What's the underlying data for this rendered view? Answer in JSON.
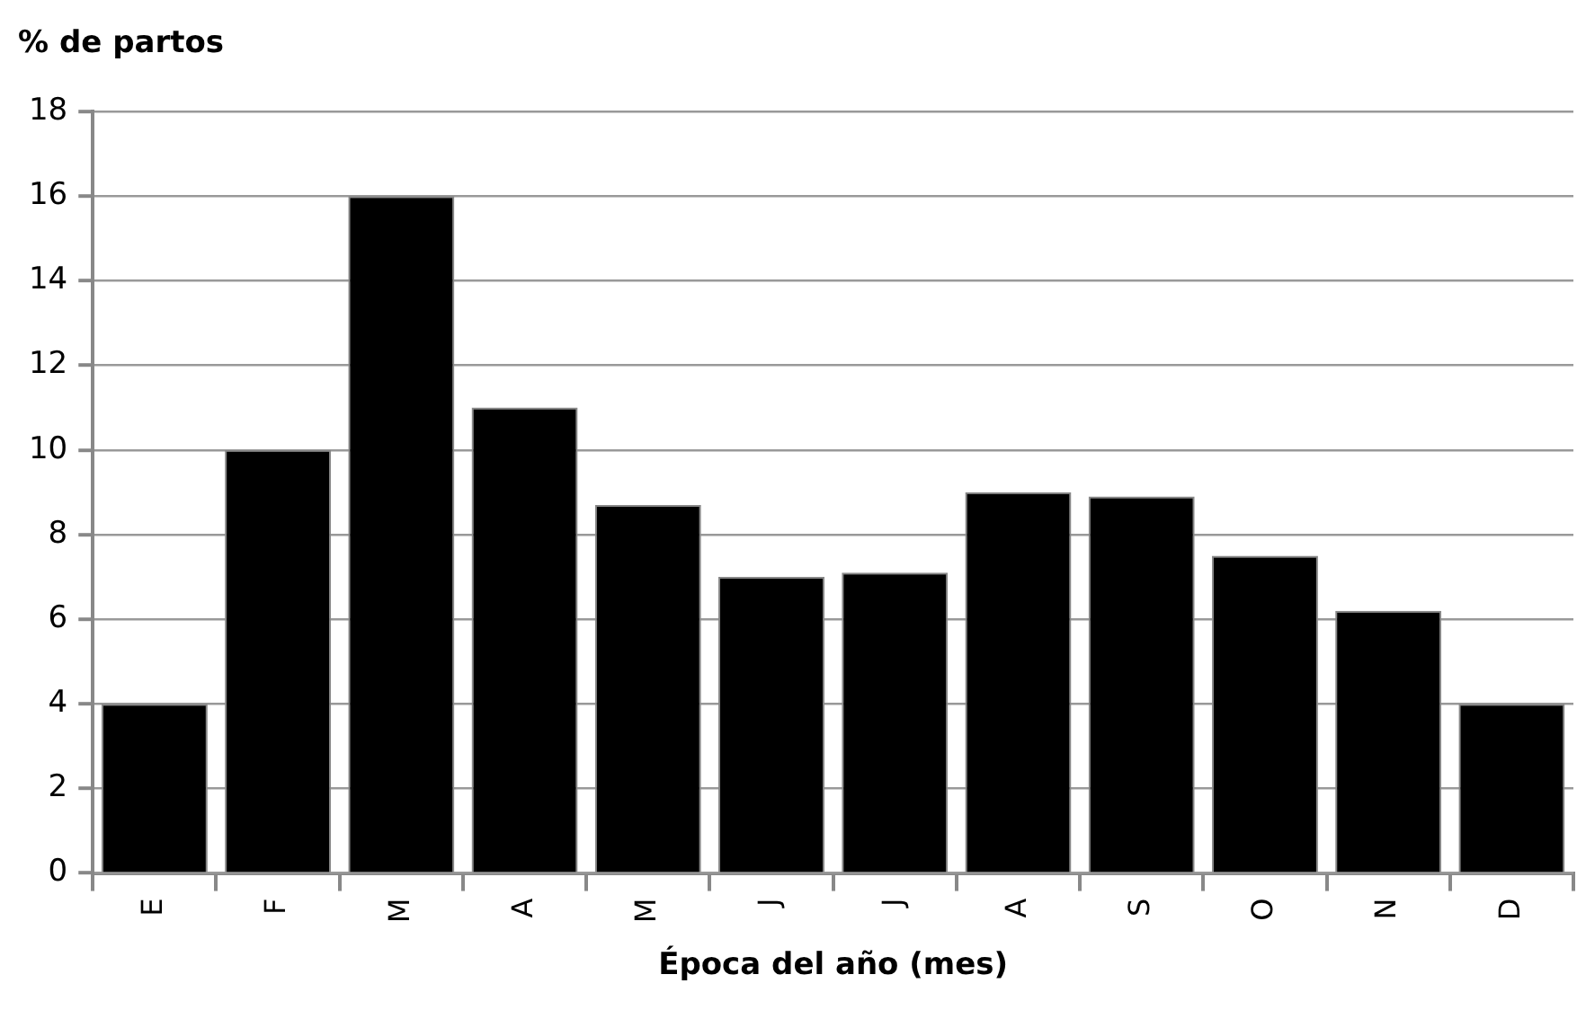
{
  "chart_data": {
    "type": "bar",
    "ylabel": "% de partos",
    "xlabel": "Época del año (mes)",
    "categories": [
      "E",
      "F",
      "M",
      "A",
      "M",
      "J",
      "J",
      "A",
      "S",
      "O",
      "N",
      "D"
    ],
    "values": [
      4,
      10,
      16,
      11,
      8.7,
      7,
      7.1,
      9,
      8.9,
      7.5,
      6.2,
      4
    ],
    "color": "#000000",
    "ylim": [
      0,
      18
    ],
    "yticks": [
      0,
      2,
      4,
      6,
      8,
      10,
      12,
      14,
      16,
      18
    ],
    "grid": "y"
  }
}
